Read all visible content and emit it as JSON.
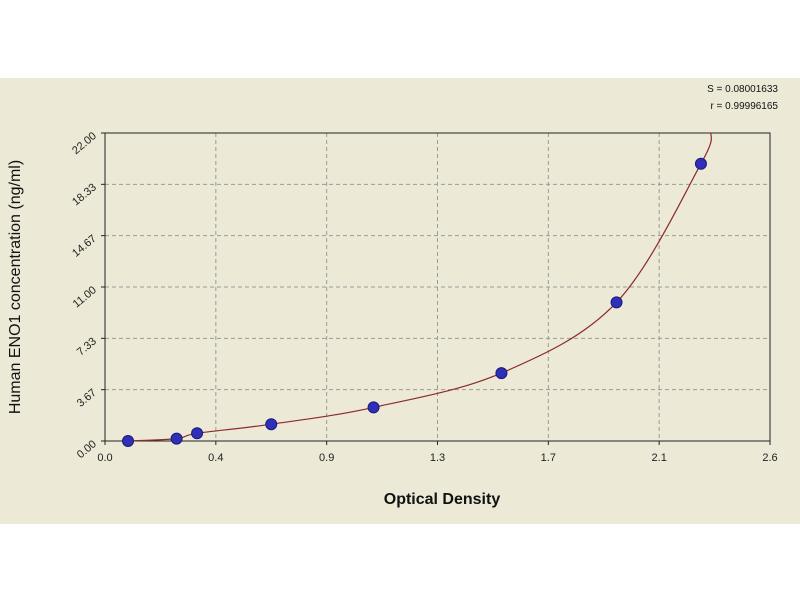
{
  "chart_data": {
    "type": "scatter",
    "xlabel": "Optical Density",
    "ylabel": "Human ENO1 concentration (ng/ml)",
    "xlim": [
      0.0,
      2.6
    ],
    "ylim": [
      0.0,
      22.0
    ],
    "x_ticks": [
      "0.0",
      "0.4",
      "0.9",
      "1.3",
      "1.7",
      "2.1",
      "2.6"
    ],
    "y_ticks": [
      "0.00",
      "3.67",
      "7.33",
      "11.00",
      "14.67",
      "18.33",
      "22.00"
    ],
    "grid": true,
    "stats": {
      "s": "S = 0.08001633",
      "r": "r = 0.99996165"
    },
    "series": [
      {
        "points": [
          {
            "x": 0.09,
            "y": 0.0
          },
          {
            "x": 0.28,
            "y": 0.17
          },
          {
            "x": 0.36,
            "y": 0.55
          },
          {
            "x": 0.65,
            "y": 1.2
          },
          {
            "x": 1.05,
            "y": 2.4
          },
          {
            "x": 1.55,
            "y": 4.85
          },
          {
            "x": 2.0,
            "y": 9.9
          },
          {
            "x": 2.33,
            "y": 19.8
          }
        ],
        "color": "#2f2fb8"
      }
    ],
    "fit_curve_color": "#8b2b2b",
    "grid_color": "#9a9a9a",
    "panel_color": "#ece9d6"
  }
}
